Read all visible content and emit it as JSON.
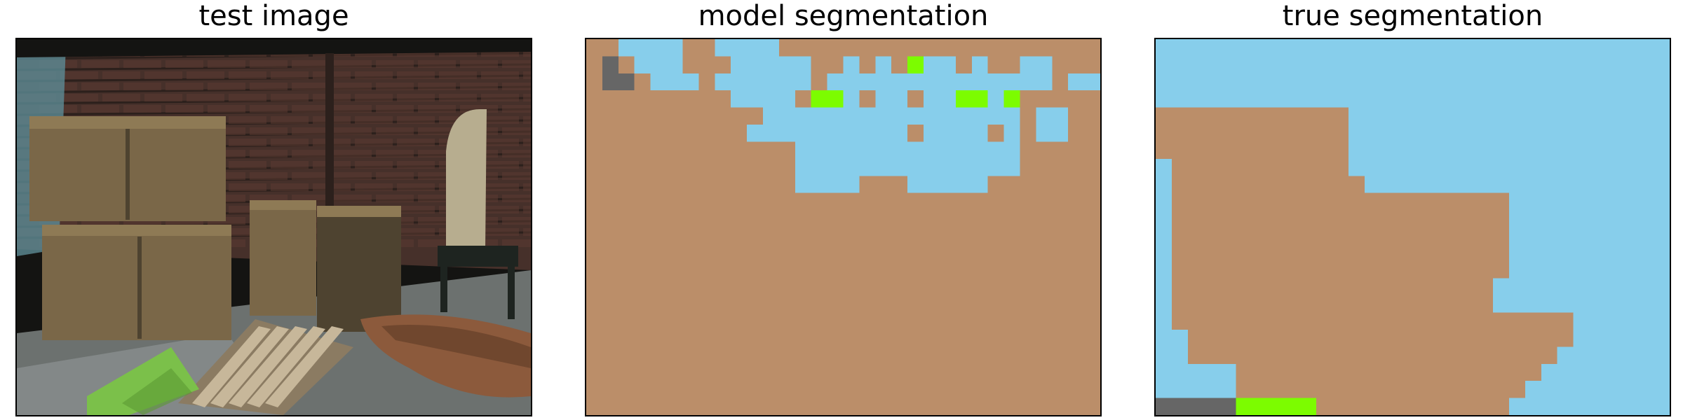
{
  "figure": {
    "panels": [
      {
        "title": "test image"
      },
      {
        "title": "model segmentation"
      },
      {
        "title": "true segmentation"
      }
    ]
  },
  "palette": {
    "0": "#bb8e69",
    "1": "#87ceeb",
    "2": "#7cfc00",
    "3": "#666666"
  },
  "model_segmentation": [
    "00111100111100000000000000000000",
    "03011100011111001010211010011000",
    "03301110111111011111111111111011",
    "00000000011110221011011221200000",
    "00000000000111111111111111101100",
    "00000000001111111111011110101100",
    "00000000000001111111111111100000",
    "00000000000001111111111111100000",
    "00000000000001111000111110000000",
    "00000000000000000000000000000000",
    "00000000000000000000000000000000",
    "00000000000000000000000000000000",
    "00000000000000000000000000000000",
    "00000000000000000000000000000000",
    "00000000000000000000000000000000",
    "00000000000000000000000000000000",
    "00000000000000000000000000000000",
    "00000000000000000000000000000000",
    "00000000000000000000000000000000",
    "00000000000000000000000000000000",
    "00000000000000000000000000000000",
    "00000000000000000000000000000000"
  ],
  "true_segmentation": [
    "11111111111111111111111111111111",
    "11111111111111111111111111111111",
    "11111111111111111111111111111111",
    "11111111111111111111111111111111",
    "00000000000011111111111111111111",
    "00000000000011111111111111111111",
    "00000000000011111111111111111111",
    "10000000000011111111111111111111",
    "10000000000001111111111111111111",
    "10000000000000000000001111111111",
    "10000000000000000000001111111111",
    "10000000000000000000001111111111",
    "10000000000000000000001111111111",
    "10000000000000000000001111111111",
    "10000000000000000000011111111111",
    "10000000000000000000011111111111",
    "10000000000000000000000000111111",
    "11000000000000000000000000111111",
    "11000000000000000000000001111111",
    "11111000000000000000000011111111",
    "11111000000000000000000111111111",
    "33333222220000000000001111111111"
  ],
  "test_image": {
    "colors": {
      "backdrop": "#141412",
      "wall": "#46302a",
      "brick": "#5b3b31",
      "mortar": "#2c201c",
      "floor": "#6c716f",
      "floor_light": "#9aa0a2",
      "crate": "#7a6748",
      "crate_dark": "#4e4330",
      "crate_light": "#8e7a55",
      "pallet": "#c7b79a",
      "pallet_dark": "#8b7b62",
      "mat": "#7bc04a",
      "mat_dark": "#5c9a33",
      "chair": "#b7ad8f",
      "boots": "#8c5a3c",
      "boots_dark": "#5d3a24",
      "shadow": "#1e2420",
      "bluewall": "#5d8b95"
    }
  }
}
